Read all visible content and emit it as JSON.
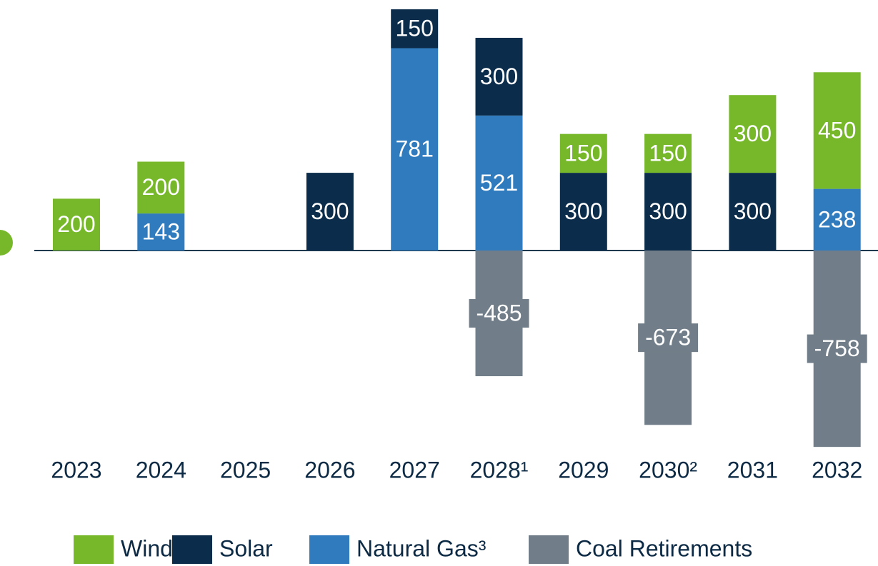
{
  "chart_data": {
    "type": "stacked-bar",
    "categories": [
      "2023",
      "2024",
      "2025",
      "2026",
      "2027",
      "2028¹",
      "2029",
      "2030²",
      "2031",
      "2032"
    ],
    "series": [
      {
        "name": "Wind",
        "color": "#76b82a",
        "values": [
          200,
          200,
          null,
          null,
          null,
          null,
          150,
          150,
          300,
          450
        ]
      },
      {
        "name": "Solar",
        "color": "#0b2d4b",
        "values": [
          null,
          null,
          null,
          300,
          150,
          300,
          300,
          300,
          300,
          null
        ]
      },
      {
        "name": "Natural Gas³",
        "color": "#2f7bbd",
        "values": [
          null,
          143,
          null,
          null,
          781,
          521,
          null,
          null,
          null,
          238
        ]
      },
      {
        "name": "Coal Retirements",
        "color": "#717e89",
        "values": [
          null,
          null,
          null,
          null,
          null,
          -485,
          null,
          -673,
          null,
          -758
        ]
      }
    ],
    "stack_order": [
      "Natural Gas³",
      "Solar",
      "Wind"
    ]
  }
}
